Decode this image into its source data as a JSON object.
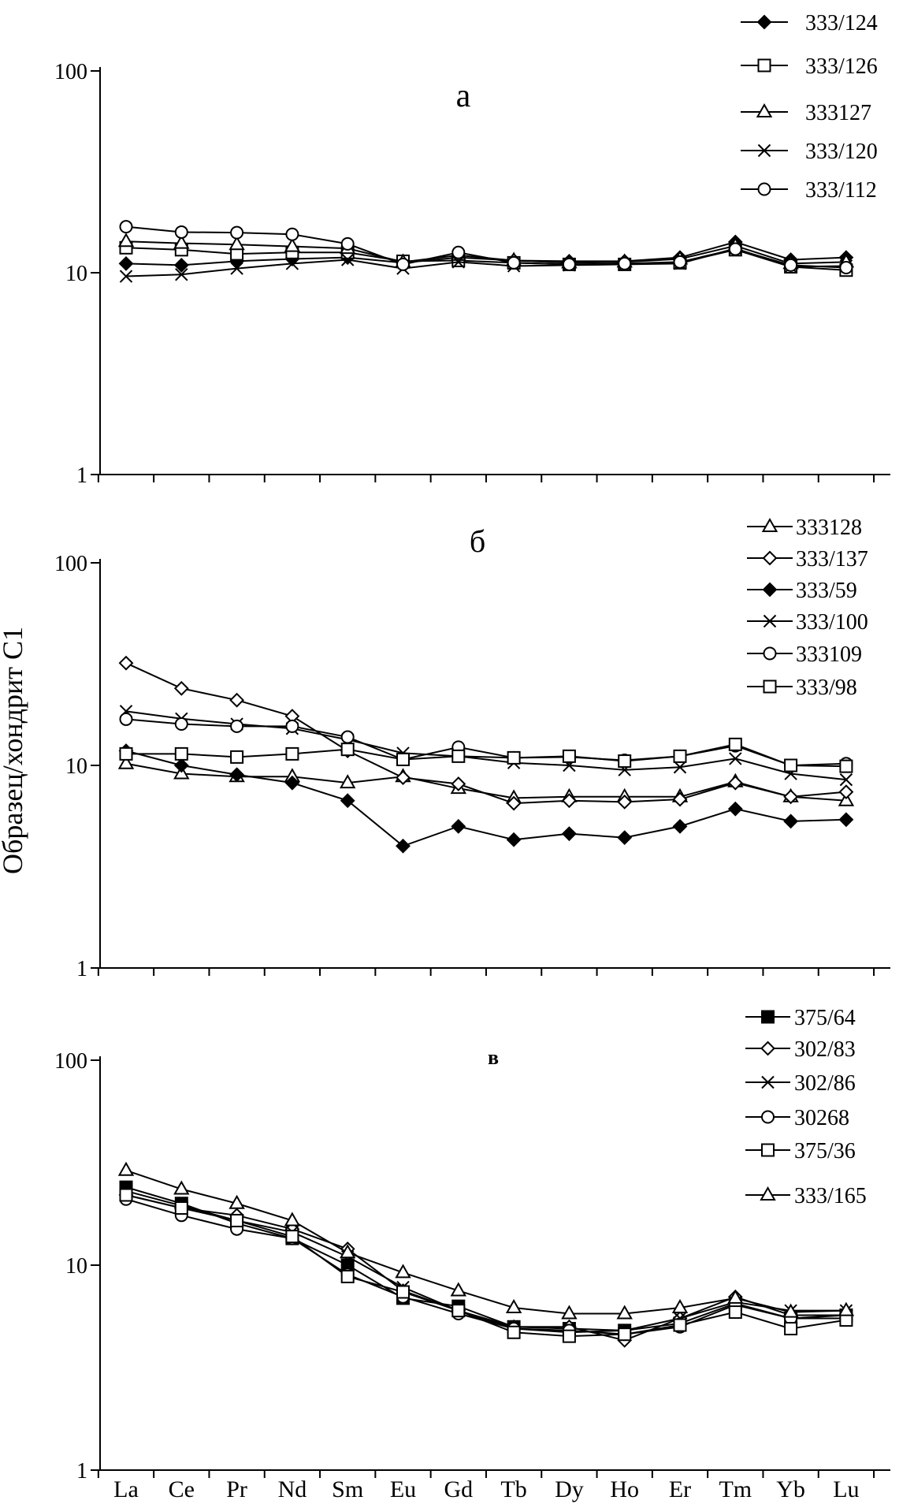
{
  "ylabel": "Образец/хондрит С1",
  "elements": [
    "La",
    "Ce",
    "Pr",
    "Nd",
    "Sm",
    "Eu",
    "Gd",
    "Tb",
    "Dy",
    "Ho",
    "Er",
    "Tm",
    "Yb",
    "Lu"
  ],
  "yticks": [
    "1",
    "10",
    "100"
  ],
  "chart_data": [
    {
      "type": "line",
      "panel_label": "а",
      "yscale": "log",
      "ylim": [
        1,
        100
      ],
      "x": [
        "La",
        "Ce",
        "Pr",
        "Nd",
        "Sm",
        "Eu",
        "Gd",
        "Tb",
        "Dy",
        "Ho",
        "Er",
        "Tm",
        "Yb",
        "Lu"
      ],
      "series": [
        {
          "name": "333/124",
          "marker": "diamond-filled",
          "values": [
            11.1,
            10.9,
            11.4,
            11.7,
            11.9,
            11.2,
            11.9,
            11.5,
            11.4,
            11.4,
            11.9,
            14.2,
            11.6,
            11.9
          ]
        },
        {
          "name": "333/126",
          "marker": "square-open",
          "values": [
            13.3,
            13.0,
            12.4,
            12.6,
            12.6,
            11.4,
            11.5,
            11.2,
            11.0,
            11.0,
            11.2,
            13.0,
            10.7,
            10.3
          ]
        },
        {
          "name": "333127",
          "marker": "triangle-open",
          "values": [
            14.3,
            14.0,
            13.8,
            13.5,
            13.2,
            11.3,
            12.2,
            11.5,
            11.2,
            11.3,
            11.7,
            13.6,
            11.1,
            11.3
          ]
        },
        {
          "name": "333/120",
          "marker": "x",
          "values": [
            9.6,
            9.8,
            10.5,
            11.1,
            11.6,
            10.5,
            11.3,
            10.8,
            10.9,
            11.0,
            11.1,
            13.2,
            10.7,
            10.8
          ]
        },
        {
          "name": "333/112",
          "marker": "circle-open",
          "values": [
            16.9,
            15.9,
            15.8,
            15.5,
            13.9,
            11.0,
            12.6,
            11.2,
            11.0,
            11.1,
            11.3,
            13.1,
            10.9,
            10.6
          ]
        }
      ]
    },
    {
      "type": "line",
      "panel_label": "б",
      "yscale": "log",
      "ylim": [
        1,
        100
      ],
      "x": [
        "La",
        "Ce",
        "Pr",
        "Nd",
        "Sm",
        "Eu",
        "Gd",
        "Tb",
        "Dy",
        "Ho",
        "Er",
        "Tm",
        "Yb",
        "Lu"
      ],
      "series": [
        {
          "name": "333128",
          "marker": "triangle-open",
          "values": [
            10.2,
            9.1,
            8.8,
            8.8,
            8.2,
            8.8,
            7.7,
            6.9,
            7.0,
            7.0,
            7.0,
            8.3,
            7.0,
            6.7
          ]
        },
        {
          "name": "333/137",
          "marker": "diamond-open",
          "values": [
            32.0,
            24.0,
            21.0,
            17.5,
            11.8,
            8.7,
            8.1,
            6.5,
            6.7,
            6.6,
            6.8,
            8.2,
            7.0,
            7.4
          ]
        },
        {
          "name": "333/59",
          "marker": "diamond-filled",
          "values": [
            11.8,
            10.0,
            9.0,
            8.2,
            6.7,
            4.0,
            5.0,
            4.3,
            4.6,
            4.4,
            5.0,
            6.1,
            5.3,
            5.4
          ]
        },
        {
          "name": "333/100",
          "marker": "x",
          "values": [
            18.5,
            17.0,
            16.0,
            15.2,
            13.4,
            11.5,
            11.1,
            10.3,
            10.0,
            9.5,
            9.8,
            10.8,
            9.1,
            8.5
          ]
        },
        {
          "name": "333109",
          "marker": "circle-open",
          "values": [
            16.9,
            16.0,
            15.6,
            15.6,
            13.8,
            10.7,
            12.3,
            10.9,
            11.0,
            10.6,
            11.1,
            12.5,
            10.0,
            10.2
          ]
        },
        {
          "name": "333/98",
          "marker": "square-open",
          "values": [
            11.4,
            11.4,
            11.0,
            11.4,
            12.0,
            10.7,
            11.1,
            10.9,
            11.1,
            10.5,
            11.1,
            12.7,
            10.0,
            9.9
          ]
        }
      ]
    },
    {
      "type": "line",
      "panel_label": "в",
      "yscale": "log",
      "ylim": [
        1,
        100
      ],
      "x": [
        "La",
        "Ce",
        "Pr",
        "Nd",
        "Sm",
        "Eu",
        "Gd",
        "Tb",
        "Dy",
        "Ho",
        "Er",
        "Tm",
        "Yb",
        "Lu"
      ],
      "series": [
        {
          "name": "375/64",
          "marker": "square-filled",
          "values": [
            24.0,
            20.0,
            16.0,
            13.5,
            10.0,
            6.9,
            6.3,
            5.0,
            4.9,
            4.8,
            5.2,
            6.5,
            5.5,
            5.7
          ]
        },
        {
          "name": "302/83",
          "marker": "diamond-open",
          "values": [
            22.0,
            19.0,
            17.5,
            15.0,
            12.0,
            7.5,
            6.0,
            5.0,
            5.0,
            4.3,
            5.5,
            7.0,
            5.7,
            5.7
          ]
        },
        {
          "name": "302/86",
          "marker": "x",
          "values": [
            23.0,
            19.5,
            16.5,
            14.5,
            11.0,
            7.8,
            6.0,
            4.9,
            4.7,
            4.8,
            5.5,
            6.6,
            6.0,
            6.0
          ]
        },
        {
          "name": "30268",
          "marker": "circle-open",
          "values": [
            21.0,
            17.5,
            15.0,
            13.5,
            9.0,
            7.0,
            5.8,
            4.9,
            4.8,
            4.6,
            5.0,
            6.4,
            5.5,
            5.5
          ]
        },
        {
          "name": "375/36",
          "marker": "square-open",
          "values": [
            22.0,
            19.0,
            16.5,
            13.8,
            8.8,
            7.4,
            6.0,
            4.7,
            4.5,
            4.6,
            5.1,
            5.9,
            4.9,
            5.4
          ]
        },
        {
          "name": "333/165",
          "marker": "triangle-open",
          "values": [
            29.0,
            23.5,
            20.0,
            16.5,
            11.5,
            9.2,
            7.5,
            6.2,
            5.8,
            5.8,
            6.2,
            6.9,
            5.9,
            6.0
          ]
        }
      ]
    }
  ]
}
